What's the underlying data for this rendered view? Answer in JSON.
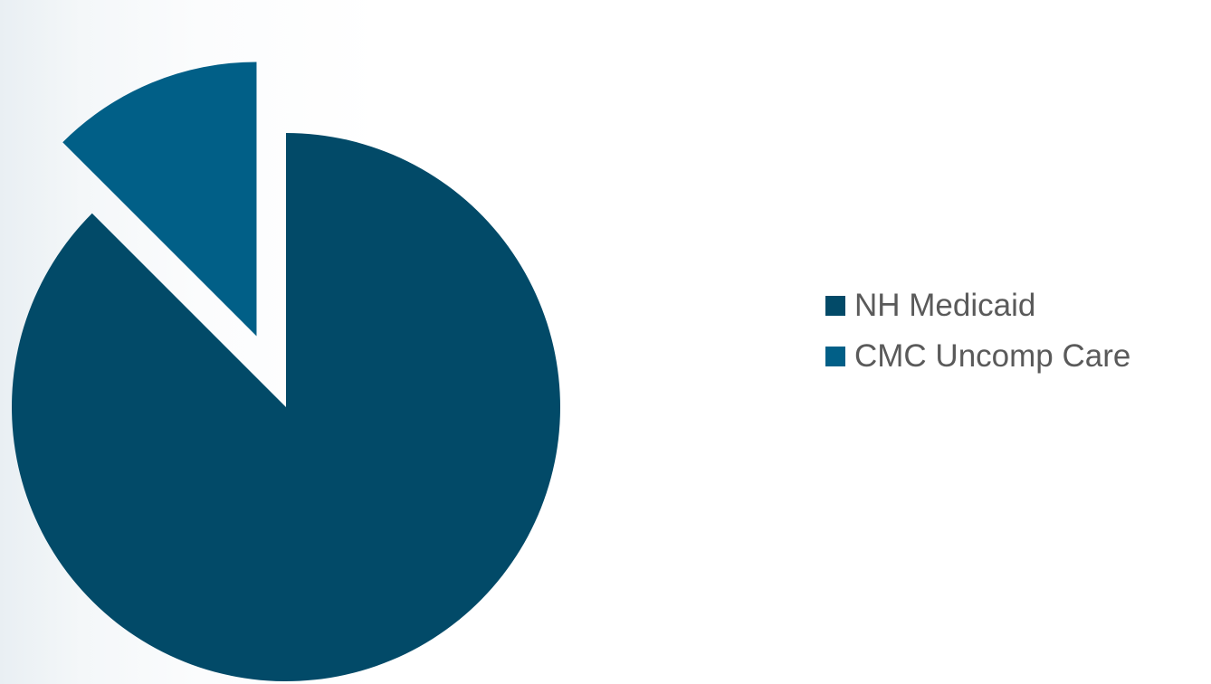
{
  "chart_data": {
    "type": "pie",
    "categories": [
      "NH Medicaid",
      "CMC Uncomp Care"
    ],
    "values": [
      87.5,
      12.5
    ],
    "colors": [
      "#024a68",
      "#015f87"
    ],
    "exploded_slice": "CMC Uncomp Care",
    "legend": {
      "position": "right",
      "entries": [
        "NH Medicaid",
        "CMC Uncomp Care"
      ]
    }
  }
}
